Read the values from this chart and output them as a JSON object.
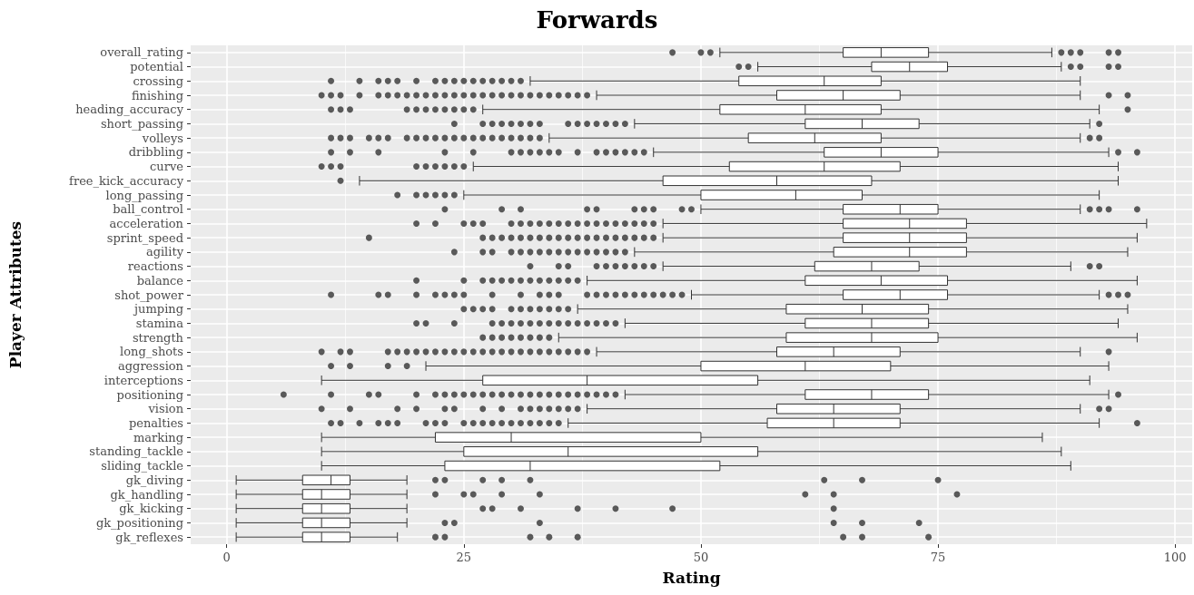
{
  "chart_data": {
    "type": "box",
    "title": "Forwards",
    "xlabel": "Rating",
    "ylabel": "Player Attributes",
    "orientation": "horizontal",
    "grid": true,
    "xlim": [
      -3.8,
      101.8
    ],
    "xticks": [
      0,
      25,
      50,
      75,
      100
    ],
    "categories": [
      "overall_rating",
      "potential",
      "crossing",
      "finishing",
      "heading_accuracy",
      "short_passing",
      "volleys",
      "dribbling",
      "curve",
      "free_kick_accuracy",
      "long_passing",
      "ball_control",
      "acceleration",
      "sprint_speed",
      "agility",
      "reactions",
      "balance",
      "shot_power",
      "jumping",
      "stamina",
      "strength",
      "long_shots",
      "aggression",
      "interceptions",
      "positioning",
      "vision",
      "penalties",
      "marking",
      "standing_tackle",
      "sliding_tackle",
      "gk_diving",
      "gk_handling",
      "gk_kicking",
      "gk_positioning",
      "gk_reflexes"
    ],
    "color": "#333333",
    "boxes": [
      {
        "low": 52,
        "q1": 65,
        "median": 69,
        "q3": 74,
        "high": 87,
        "outliers": [
          47,
          50,
          51,
          88,
          89,
          90,
          93,
          94
        ]
      },
      {
        "low": 56,
        "q1": 68,
        "median": 72,
        "q3": 76,
        "high": 88,
        "outliers": [
          54,
          55,
          89,
          90,
          93,
          94
        ]
      },
      {
        "low": 32,
        "q1": 54,
        "median": 63,
        "q3": 69,
        "high": 90,
        "outliers": [
          11,
          14,
          16,
          17,
          18,
          20,
          22,
          23,
          24,
          25,
          26,
          27,
          28,
          29,
          30,
          31
        ]
      },
      {
        "low": 39,
        "q1": 58,
        "median": 65,
        "q3": 71,
        "high": 90,
        "outliers": [
          10,
          11,
          12,
          14,
          16,
          17,
          18,
          19,
          20,
          21,
          22,
          23,
          24,
          25,
          26,
          27,
          28,
          29,
          30,
          31,
          32,
          33,
          34,
          35,
          36,
          37,
          38,
          93,
          95
        ]
      },
      {
        "low": 27,
        "q1": 52,
        "median": 61,
        "q3": 69,
        "high": 92,
        "outliers": [
          11,
          12,
          13,
          19,
          20,
          21,
          22,
          23,
          24,
          25,
          26,
          95
        ]
      },
      {
        "low": 43,
        "q1": 61,
        "median": 67,
        "q3": 73,
        "high": 91,
        "outliers": [
          24,
          27,
          28,
          29,
          30,
          31,
          32,
          33,
          36,
          37,
          38,
          39,
          40,
          41,
          42,
          92
        ]
      },
      {
        "low": 34,
        "q1": 55,
        "median": 62,
        "q3": 69,
        "high": 90,
        "outliers": [
          11,
          12,
          13,
          15,
          16,
          17,
          19,
          20,
          21,
          22,
          23,
          24,
          25,
          26,
          27,
          28,
          29,
          30,
          31,
          32,
          33,
          91,
          92
        ]
      },
      {
        "low": 45,
        "q1": 63,
        "median": 69,
        "q3": 75,
        "high": 93,
        "outliers": [
          11,
          13,
          16,
          23,
          26,
          30,
          31,
          32,
          33,
          34,
          35,
          37,
          39,
          40,
          41,
          42,
          43,
          44,
          94,
          96
        ]
      },
      {
        "low": 26,
        "q1": 53,
        "median": 63,
        "q3": 71,
        "high": 94,
        "outliers": [
          10,
          11,
          12,
          20,
          21,
          22,
          23,
          24,
          25
        ]
      },
      {
        "low": 14,
        "q1": 46,
        "median": 58,
        "q3": 68,
        "high": 94,
        "outliers": [
          12
        ]
      },
      {
        "low": 25,
        "q1": 50,
        "median": 60,
        "q3": 67,
        "high": 92,
        "outliers": [
          18,
          20,
          21,
          22,
          23,
          24
        ]
      },
      {
        "low": 50,
        "q1": 65,
        "median": 71,
        "q3": 75,
        "high": 90,
        "outliers": [
          23,
          29,
          31,
          38,
          39,
          43,
          44,
          45,
          48,
          49,
          91,
          92,
          93,
          96
        ]
      },
      {
        "low": 46,
        "q1": 65,
        "median": 72,
        "q3": 78,
        "high": 97,
        "outliers": [
          20,
          22,
          25,
          26,
          27,
          30,
          31,
          32,
          33,
          34,
          35,
          36,
          37,
          38,
          39,
          40,
          41,
          42,
          43,
          44,
          45
        ]
      },
      {
        "low": 46,
        "q1": 65,
        "median": 72,
        "q3": 78,
        "high": 96,
        "outliers": [
          15,
          27,
          28,
          29,
          30,
          31,
          32,
          33,
          34,
          35,
          36,
          37,
          38,
          39,
          40,
          41,
          42,
          43,
          44,
          45
        ]
      },
      {
        "low": 43,
        "q1": 64,
        "median": 72,
        "q3": 78,
        "high": 95,
        "outliers": [
          24,
          27,
          28,
          30,
          31,
          32,
          33,
          34,
          35,
          36,
          37,
          38,
          39,
          40,
          41,
          42
        ]
      },
      {
        "low": 46,
        "q1": 62,
        "median": 68,
        "q3": 73,
        "high": 89,
        "outliers": [
          32,
          35,
          36,
          39,
          40,
          41,
          42,
          43,
          44,
          45,
          91,
          92
        ]
      },
      {
        "low": 38,
        "q1": 61,
        "median": 69,
        "q3": 76,
        "high": 96,
        "outliers": [
          20,
          25,
          27,
          28,
          29,
          30,
          31,
          32,
          33,
          34,
          35,
          36,
          37
        ]
      },
      {
        "low": 49,
        "q1": 65,
        "median": 71,
        "q3": 76,
        "high": 92,
        "outliers": [
          11,
          16,
          17,
          20,
          22,
          23,
          24,
          25,
          28,
          31,
          33,
          34,
          35,
          38,
          39,
          40,
          41,
          42,
          43,
          44,
          45,
          46,
          47,
          48,
          93,
          94,
          95
        ]
      },
      {
        "low": 37,
        "q1": 59,
        "median": 67,
        "q3": 74,
        "high": 95,
        "outliers": [
          25,
          26,
          27,
          28,
          30,
          31,
          32,
          33,
          34,
          35,
          36
        ]
      },
      {
        "low": 42,
        "q1": 61,
        "median": 68,
        "q3": 74,
        "high": 94,
        "outliers": [
          20,
          21,
          24,
          28,
          29,
          30,
          31,
          32,
          33,
          34,
          35,
          36,
          37,
          38,
          39,
          40,
          41
        ]
      },
      {
        "low": 35,
        "q1": 59,
        "median": 68,
        "q3": 75,
        "high": 96,
        "outliers": [
          27,
          28,
          29,
          30,
          31,
          32,
          33,
          34
        ]
      },
      {
        "low": 39,
        "q1": 58,
        "median": 64,
        "q3": 71,
        "high": 90,
        "outliers": [
          10,
          12,
          13,
          17,
          18,
          19,
          20,
          21,
          22,
          23,
          24,
          25,
          26,
          27,
          28,
          29,
          30,
          31,
          32,
          33,
          34,
          35,
          36,
          37,
          38,
          93
        ]
      },
      {
        "low": 21,
        "q1": 50,
        "median": 61,
        "q3": 70,
        "high": 93,
        "outliers": [
          11,
          13,
          17,
          19
        ]
      },
      {
        "low": 10,
        "q1": 27,
        "median": 38,
        "q3": 56,
        "high": 91
      },
      {
        "low": 42,
        "q1": 61,
        "median": 68,
        "q3": 74,
        "high": 93,
        "outliers": [
          6,
          11,
          15,
          16,
          20,
          22,
          23,
          24,
          25,
          26,
          27,
          28,
          29,
          30,
          31,
          32,
          33,
          34,
          35,
          36,
          37,
          38,
          39,
          40,
          41,
          94
        ]
      },
      {
        "low": 38,
        "q1": 58,
        "median": 64,
        "q3": 71,
        "high": 90,
        "outliers": [
          10,
          13,
          18,
          20,
          23,
          24,
          27,
          29,
          31,
          32,
          33,
          34,
          35,
          36,
          37,
          92,
          93
        ]
      },
      {
        "low": 36,
        "q1": 57,
        "median": 64,
        "q3": 71,
        "high": 92,
        "outliers": [
          11,
          12,
          14,
          16,
          17,
          18,
          21,
          22,
          23,
          25,
          26,
          27,
          28,
          29,
          30,
          31,
          32,
          33,
          34,
          35,
          96
        ]
      },
      {
        "low": 10,
        "q1": 22,
        "median": 30,
        "q3": 50,
        "high": 86
      },
      {
        "low": 10,
        "q1": 25,
        "median": 36,
        "q3": 56,
        "high": 88
      },
      {
        "low": 10,
        "q1": 23,
        "median": 32,
        "q3": 52,
        "high": 89
      },
      {
        "low": 1,
        "q1": 8,
        "median": 11,
        "q3": 13,
        "high": 19,
        "outliers": [
          22,
          23,
          27,
          29,
          32,
          63,
          67,
          75
        ]
      },
      {
        "low": 1,
        "q1": 8,
        "median": 10,
        "q3": 13,
        "high": 19,
        "outliers": [
          22,
          25,
          26,
          29,
          33,
          61,
          64,
          77
        ]
      },
      {
        "low": 1,
        "q1": 8,
        "median": 10,
        "q3": 13,
        "high": 19,
        "outliers": [
          27,
          28,
          31,
          37,
          41,
          47,
          64
        ]
      },
      {
        "low": 1,
        "q1": 8,
        "median": 10,
        "q3": 13,
        "high": 19,
        "outliers": [
          23,
          24,
          33,
          64,
          67,
          73
        ]
      },
      {
        "low": 1,
        "q1": 8,
        "median": 10,
        "q3": 13,
        "high": 18,
        "outliers": [
          22,
          23,
          32,
          34,
          37,
          65,
          67,
          74
        ]
      }
    ]
  }
}
